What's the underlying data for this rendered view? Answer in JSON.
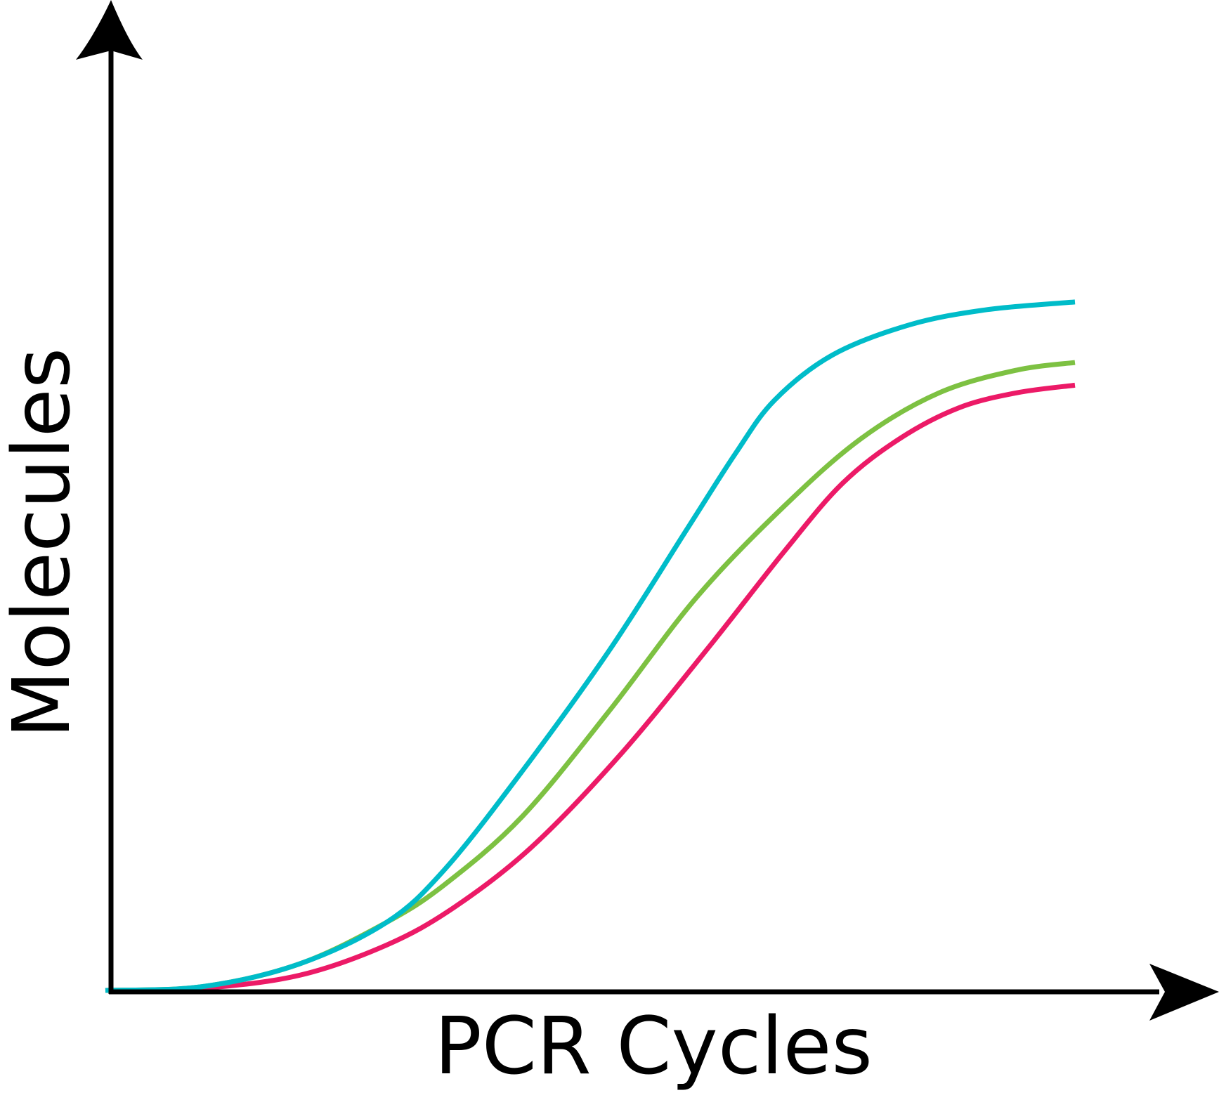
{
  "chart_data": {
    "type": "line",
    "title": "",
    "xlabel": "PCR Cycles",
    "ylabel": "Molecules",
    "xlim": [
      0,
      100
    ],
    "ylim": [
      0,
      100
    ],
    "grid": false,
    "ticks": false,
    "series": [
      {
        "color": "#00bcc9",
        "points": [
          [
            0,
            0
          ],
          [
            10,
            0.5
          ],
          [
            20,
            3.5
          ],
          [
            29,
            9
          ],
          [
            35,
            16
          ],
          [
            43,
            29
          ],
          [
            52,
            45
          ],
          [
            60,
            61
          ],
          [
            65,
            71
          ],
          [
            69,
            78
          ],
          [
            75,
            84
          ],
          [
            83,
            88
          ],
          [
            91,
            90
          ],
          [
            100,
            91
          ]
        ]
      },
      {
        "color": "#7dc142",
        "points": [
          [
            0,
            0
          ],
          [
            10,
            0.5
          ],
          [
            20,
            3.5
          ],
          [
            29,
            9
          ],
          [
            35,
            14
          ],
          [
            43,
            23
          ],
          [
            52,
            37
          ],
          [
            61,
            52
          ],
          [
            70,
            64
          ],
          [
            78,
            73
          ],
          [
            86,
            79
          ],
          [
            94,
            82
          ],
          [
            100,
            83
          ]
        ]
      },
      {
        "color": "#ec1a67",
        "points": [
          [
            0,
            0
          ],
          [
            10,
            0.3
          ],
          [
            20,
            2
          ],
          [
            29,
            6
          ],
          [
            36,
            11
          ],
          [
            44,
            19
          ],
          [
            53,
            31
          ],
          [
            62,
            45
          ],
          [
            70,
            58
          ],
          [
            76,
            67
          ],
          [
            82,
            73
          ],
          [
            88,
            77
          ],
          [
            94,
            79
          ],
          [
            100,
            80
          ]
        ]
      }
    ]
  }
}
